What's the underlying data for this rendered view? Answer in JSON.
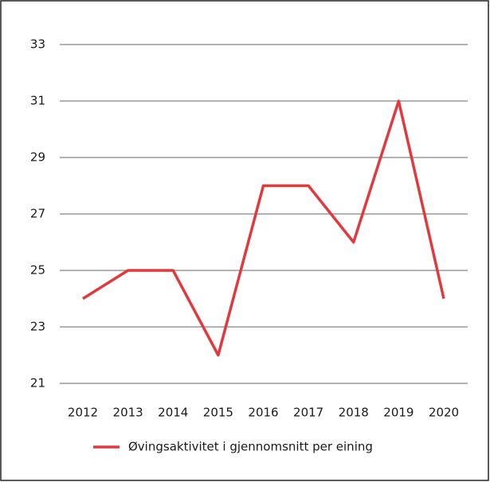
{
  "chart_data": {
    "type": "line",
    "categories": [
      "2012",
      "2013",
      "2014",
      "2015",
      "2016",
      "2017",
      "2018",
      "2019",
      "2020"
    ],
    "series": [
      {
        "name": "Øvingsaktivitet i gjennomsnitt per eining",
        "color": "#e0393e",
        "values": [
          24,
          25,
          25,
          22,
          28,
          28,
          26,
          31,
          24
        ]
      }
    ],
    "ylim": [
      21,
      33
    ],
    "yticks": [
      21,
      23,
      25,
      27,
      29,
      31,
      33
    ],
    "grid": true
  }
}
